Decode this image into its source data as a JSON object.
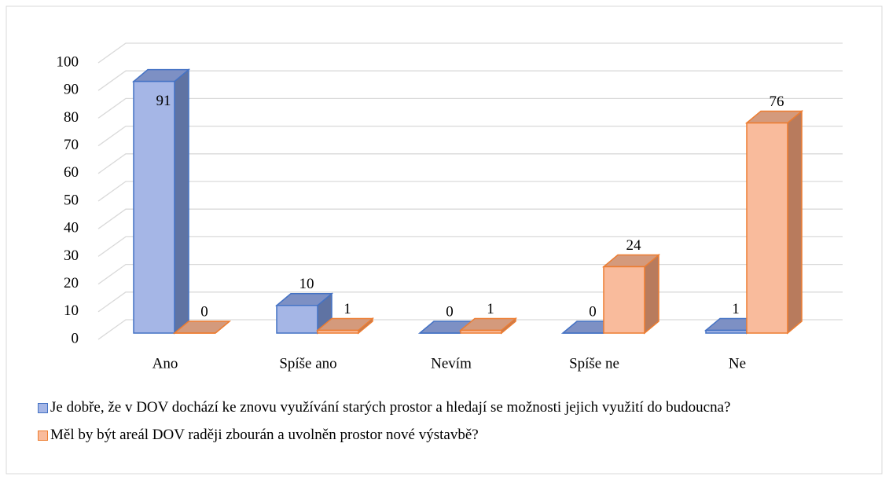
{
  "chart_data": {
    "type": "bar3d",
    "categories": [
      "Ano",
      "Spíše ano",
      "Nevím",
      "Spíše ne",
      "Ne"
    ],
    "series": [
      {
        "name": "Je dobře, že v DOV dochází ke znovu využívání starých prostor a hledají se možnosti jejich využití do budoucna?",
        "color": "#4472c4",
        "values": [
          91,
          10,
          0,
          0,
          1
        ]
      },
      {
        "name": "Měl by být areál DOV raději zbourán a uvolněn prostor nové výstavbě?",
        "color": "#ed7d31",
        "values": [
          0,
          1,
          1,
          24,
          76
        ]
      }
    ],
    "ylim": [
      0,
      100
    ],
    "yticks": [
      0,
      10,
      20,
      30,
      40,
      50,
      60,
      70,
      80,
      90,
      100
    ],
    "grid": true,
    "legend": "bottom"
  }
}
